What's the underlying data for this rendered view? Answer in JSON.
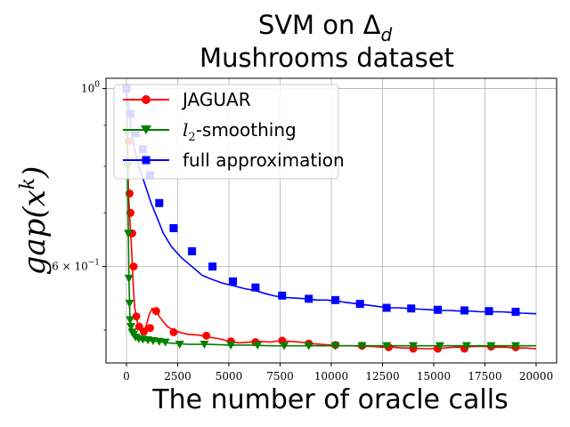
{
  "chart_data": {
    "type": "line",
    "title_line1": "SVM on Δ",
    "title_sub": "d",
    "title_line2": "Mushrooms dataset",
    "xlabel": "The number of oracle calls",
    "ylabel": "gap(x",
    "ylabel_sup": "k",
    "ylabel_close": ")",
    "yscale": "log",
    "xlim": [
      -1000,
      21000
    ],
    "ylim": [
      0.455,
      1.03
    ],
    "xticks": [
      0,
      2500,
      5000,
      7500,
      10000,
      12500,
      15000,
      17500,
      20000
    ],
    "xtick_labels": [
      "0",
      "2500",
      "5000",
      "7500",
      "10000",
      "12500",
      "15000",
      "17500",
      "20000"
    ],
    "yticks": [
      1.0,
      0.6
    ],
    "ytick_labels": [
      {
        "base": "10",
        "exp": "0",
        "prefix": ""
      },
      {
        "base": "10",
        "exp": "−1",
        "prefix": "6 × "
      }
    ],
    "grid": true,
    "legend_position": "top-left",
    "series": [
      {
        "name": "JAGUAR",
        "color": "#ff0000",
        "marker": "circle",
        "line": [
          [
            0,
            1.0
          ],
          [
            50,
            0.86
          ],
          [
            100,
            0.74
          ],
          [
            150,
            0.7
          ],
          [
            200,
            0.66
          ],
          [
            250,
            0.63
          ],
          [
            300,
            0.59
          ],
          [
            350,
            0.555
          ],
          [
            400,
            0.535
          ],
          [
            450,
            0.525
          ],
          [
            500,
            0.515
          ],
          [
            600,
            0.505
          ],
          [
            700,
            0.5
          ],
          [
            800,
            0.498
          ],
          [
            900,
            0.502
          ],
          [
            1000,
            0.51
          ],
          [
            1100,
            0.522
          ],
          [
            1250,
            0.532
          ],
          [
            1400,
            0.53
          ],
          [
            1600,
            0.52
          ],
          [
            1800,
            0.512
          ],
          [
            2000,
            0.505
          ],
          [
            2300,
            0.5
          ],
          [
            2700,
            0.496
          ],
          [
            3000,
            0.494
          ],
          [
            3500,
            0.493
          ],
          [
            4000,
            0.49
          ],
          [
            4500,
            0.488
          ],
          [
            5000,
            0.484
          ],
          [
            5500,
            0.482
          ],
          [
            6000,
            0.483
          ],
          [
            6500,
            0.484
          ],
          [
            7000,
            0.483
          ],
          [
            7500,
            0.485
          ],
          [
            8000,
            0.484
          ],
          [
            8500,
            0.483
          ],
          [
            9000,
            0.481
          ],
          [
            9500,
            0.48
          ],
          [
            10000,
            0.479
          ],
          [
            10500,
            0.478
          ],
          [
            11000,
            0.478
          ],
          [
            11500,
            0.477
          ],
          [
            12000,
            0.477
          ],
          [
            12500,
            0.476
          ],
          [
            13000,
            0.476
          ],
          [
            13500,
            0.475
          ],
          [
            14000,
            0.475
          ],
          [
            14500,
            0.474
          ],
          [
            15000,
            0.474
          ],
          [
            15500,
            0.475
          ],
          [
            16000,
            0.476
          ],
          [
            16500,
            0.476
          ],
          [
            17000,
            0.477
          ],
          [
            17500,
            0.477
          ],
          [
            18000,
            0.476
          ],
          [
            18500,
            0.476
          ],
          [
            19000,
            0.475
          ],
          [
            19500,
            0.475
          ],
          [
            20000,
            0.474
          ]
        ],
        "markers": [
          [
            100,
            0.86
          ],
          [
            150,
            0.74
          ],
          [
            200,
            0.7
          ],
          [
            280,
            0.66
          ],
          [
            350,
            0.6
          ],
          [
            480,
            0.52
          ],
          [
            620,
            0.505
          ],
          [
            850,
            0.498
          ],
          [
            1150,
            0.503
          ],
          [
            1450,
            0.528
          ],
          [
            2300,
            0.497
          ],
          [
            3900,
            0.492
          ],
          [
            5100,
            0.484
          ],
          [
            6300,
            0.483
          ],
          [
            7600,
            0.485
          ],
          [
            8900,
            0.481
          ],
          [
            10200,
            0.479
          ],
          [
            11500,
            0.478
          ],
          [
            12800,
            0.476
          ],
          [
            14000,
            0.474
          ],
          [
            15200,
            0.474
          ],
          [
            16500,
            0.474
          ],
          [
            17800,
            0.477
          ],
          [
            19000,
            0.476
          ]
        ]
      },
      {
        "name": "l2-smoothing",
        "name_main": "l",
        "name_sub": "2",
        "name_rest": "-smoothing",
        "color": "#008000",
        "marker": "triangle-down",
        "line": [
          [
            0,
            1.0
          ],
          [
            40,
            0.86
          ],
          [
            80,
            0.7
          ],
          [
            120,
            0.58
          ],
          [
            160,
            0.525
          ],
          [
            200,
            0.508
          ],
          [
            250,
            0.498
          ],
          [
            300,
            0.494
          ],
          [
            400,
            0.49
          ],
          [
            500,
            0.488
          ],
          [
            700,
            0.486
          ],
          [
            1000,
            0.485
          ],
          [
            1500,
            0.484
          ],
          [
            2000,
            0.482
          ],
          [
            2500,
            0.481
          ],
          [
            3000,
            0.48
          ],
          [
            4000,
            0.48
          ],
          [
            5000,
            0.479
          ],
          [
            6000,
            0.479
          ],
          [
            7000,
            0.478
          ],
          [
            8000,
            0.478
          ],
          [
            10000,
            0.478
          ],
          [
            12000,
            0.478
          ],
          [
            14000,
            0.478
          ],
          [
            16000,
            0.478
          ],
          [
            18000,
            0.478
          ],
          [
            20000,
            0.478
          ]
        ],
        "markers": [
          [
            30,
            0.88
          ],
          [
            60,
            0.8
          ],
          [
            90,
            0.66
          ],
          [
            120,
            0.58
          ],
          [
            150,
            0.54
          ],
          [
            180,
            0.515
          ],
          [
            220,
            0.505
          ],
          [
            280,
            0.497
          ],
          [
            350,
            0.494
          ],
          [
            450,
            0.49
          ],
          [
            600,
            0.488
          ],
          [
            800,
            0.487
          ],
          [
            1050,
            0.486
          ],
          [
            1300,
            0.485
          ],
          [
            1600,
            0.484
          ],
          [
            1900,
            0.483
          ],
          [
            2600,
            0.48
          ],
          [
            3800,
            0.48
          ],
          [
            5100,
            0.479
          ],
          [
            6400,
            0.479
          ],
          [
            7700,
            0.478
          ],
          [
            8900,
            0.478
          ],
          [
            10200,
            0.478
          ],
          [
            11500,
            0.478
          ],
          [
            12700,
            0.478
          ],
          [
            14000,
            0.478
          ],
          [
            15300,
            0.478
          ],
          [
            16600,
            0.478
          ],
          [
            17800,
            0.478
          ],
          [
            19000,
            0.478
          ]
        ]
      },
      {
        "name": "full approximation",
        "color": "#0000ff",
        "marker": "square",
        "line": [
          [
            0,
            1.0
          ],
          [
            150,
            0.93
          ],
          [
            250,
            0.88
          ],
          [
            400,
            0.84
          ],
          [
            600,
            0.8
          ],
          [
            900,
            0.76
          ],
          [
            1200,
            0.72
          ],
          [
            1500,
            0.69
          ],
          [
            1800,
            0.66
          ],
          [
            2200,
            0.635
          ],
          [
            2700,
            0.615
          ],
          [
            3200,
            0.6
          ],
          [
            3700,
            0.585
          ],
          [
            4200,
            0.578
          ],
          [
            4700,
            0.572
          ],
          [
            5200,
            0.568
          ],
          [
            5800,
            0.563
          ],
          [
            6300,
            0.56
          ],
          [
            6800,
            0.555
          ],
          [
            7300,
            0.551
          ],
          [
            7800,
            0.549
          ],
          [
            8300,
            0.548
          ],
          [
            8800,
            0.547
          ],
          [
            9300,
            0.545
          ],
          [
            9800,
            0.545
          ],
          [
            10300,
            0.543
          ],
          [
            10800,
            0.541
          ],
          [
            11300,
            0.539
          ],
          [
            11800,
            0.537
          ],
          [
            12300,
            0.535
          ],
          [
            12800,
            0.533
          ],
          [
            13300,
            0.533
          ],
          [
            13800,
            0.532
          ],
          [
            14300,
            0.531
          ],
          [
            14800,
            0.53
          ],
          [
            15300,
            0.529
          ],
          [
            15800,
            0.529
          ],
          [
            16300,
            0.528
          ],
          [
            16800,
            0.528
          ],
          [
            17300,
            0.527
          ],
          [
            17800,
            0.527
          ],
          [
            18300,
            0.527
          ],
          [
            18800,
            0.526
          ],
          [
            19300,
            0.525
          ],
          [
            20000,
            0.524
          ]
        ],
        "markers": [
          [
            0,
            1.0
          ],
          [
            200,
            0.93
          ],
          [
            450,
            0.88
          ],
          [
            800,
            0.84
          ],
          [
            1150,
            0.78
          ],
          [
            1600,
            0.72
          ],
          [
            2300,
            0.67
          ],
          [
            3200,
            0.627
          ],
          [
            4200,
            0.6
          ],
          [
            5200,
            0.575
          ],
          [
            6300,
            0.565
          ],
          [
            7600,
            0.552
          ],
          [
            8900,
            0.547
          ],
          [
            10200,
            0.545
          ],
          [
            11400,
            0.539
          ],
          [
            12700,
            0.533
          ],
          [
            13900,
            0.532
          ],
          [
            15200,
            0.53
          ],
          [
            16500,
            0.529
          ],
          [
            17700,
            0.528
          ],
          [
            19000,
            0.527
          ]
        ]
      }
    ]
  }
}
